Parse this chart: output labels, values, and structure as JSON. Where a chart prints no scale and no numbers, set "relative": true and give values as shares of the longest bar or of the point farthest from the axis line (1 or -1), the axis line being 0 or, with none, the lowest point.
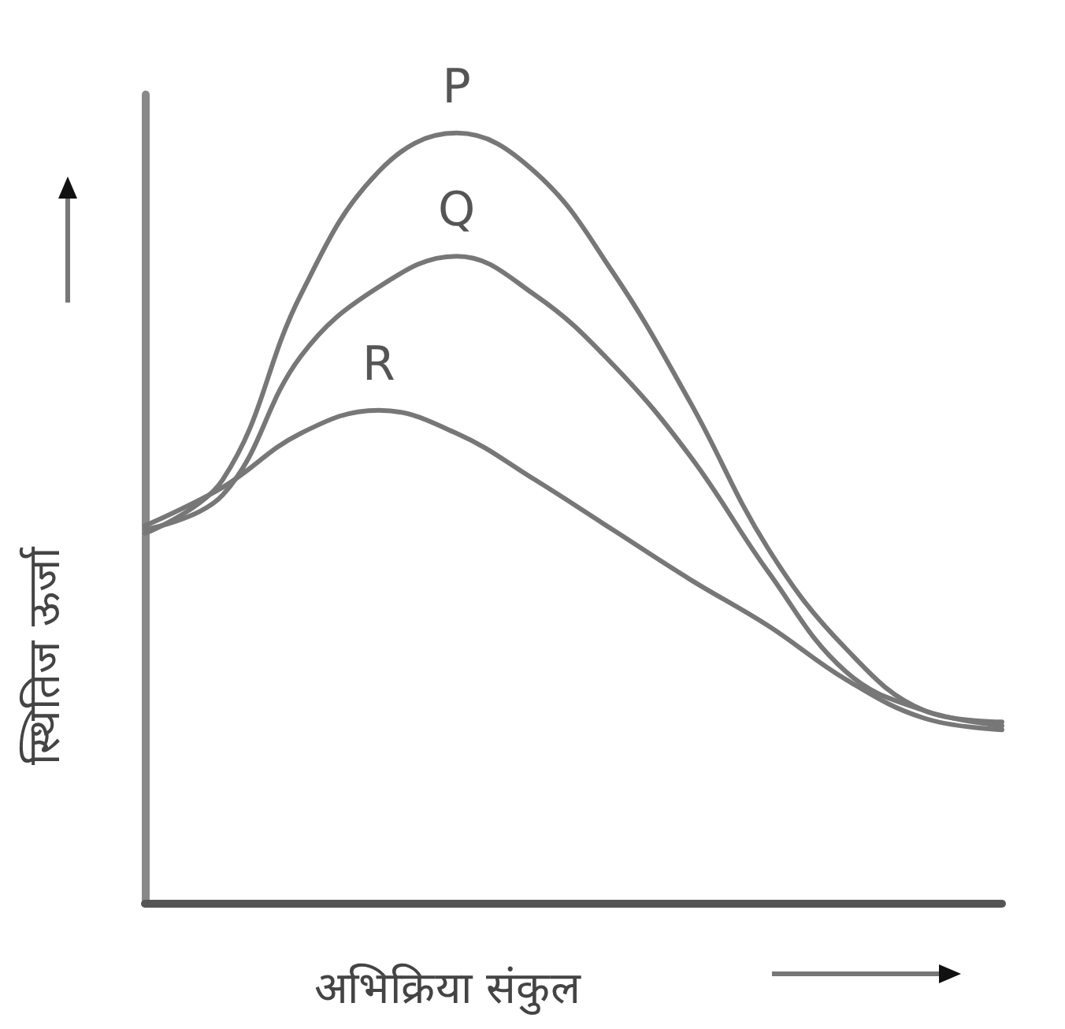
{
  "chart_data": {
    "type": "line",
    "relative": true,
    "xlabel": "अभिक्रिया संकुल",
    "ylabel": "स्थितिज ऊर्जा",
    "categories": [
      null,
      null,
      null,
      null,
      null,
      null,
      null,
      null,
      null,
      null,
      null,
      null
    ],
    "series": [
      {
        "name": "P",
        "color": "#777777",
        "values": [
          0.48,
          0.55,
          0.79,
          0.95,
          1,
          0.95,
          0.82,
          0.65,
          0.46,
          0.33,
          0.25,
          0.235
        ]
      },
      {
        "name": "Q",
        "color": "#777777",
        "values": [
          0.485,
          0.53,
          0.71,
          0.8,
          0.84,
          0.79,
          0.7,
          0.58,
          0.43,
          0.3,
          0.25,
          0.23
        ]
      },
      {
        "name": "R",
        "color": "#777777",
        "values": [
          0.49,
          0.54,
          0.61,
          0.64,
          0.61,
          0.55,
          0.485,
          0.42,
          0.36,
          0.29,
          0.24,
          0.225
        ]
      }
    ],
    "grid": false,
    "legend": false,
    "marker": "none",
    "line_style": "solid"
  }
}
